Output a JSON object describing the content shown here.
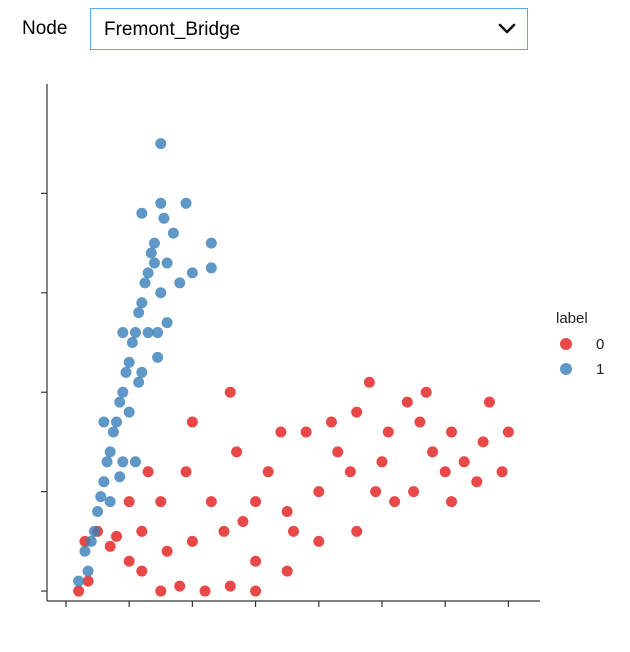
{
  "control": {
    "label": "Node",
    "selected": "Fremont_Bridge"
  },
  "icons": {
    "dropdown": "chevron-down-icon"
  },
  "colors": {
    "label_0": "#e41a1c",
    "label_1": "#377eb8",
    "dropdown_border": "#5aa9e6"
  },
  "chart_data": {
    "type": "scatter",
    "title": "",
    "xlabel": "",
    "ylabel": "",
    "xlim": [
      -0.3,
      7.5
    ],
    "ylim": [
      -0.1,
      5.1
    ],
    "xticks": [
      0,
      1,
      2,
      3,
      4,
      5,
      6,
      7
    ],
    "yticks": [
      0,
      1,
      2,
      3,
      4
    ],
    "tick_labels_visible": false,
    "grid": false,
    "legend": {
      "title": "label",
      "placement": "right",
      "entries": [
        "0",
        "1"
      ]
    },
    "series": [
      {
        "name": "0",
        "color": "#e41a1c",
        "points": [
          [
            0.2,
            0.0
          ],
          [
            0.35,
            0.1
          ],
          [
            0.3,
            0.5
          ],
          [
            0.5,
            0.6
          ],
          [
            0.8,
            0.55
          ],
          [
            1.0,
            0.3
          ],
          [
            1.2,
            0.2
          ],
          [
            1.5,
            0.0
          ],
          [
            1.8,
            0.05
          ],
          [
            2.2,
            0.0
          ],
          [
            2.6,
            0.05
          ],
          [
            3.0,
            0.0
          ],
          [
            2.0,
            0.5
          ],
          [
            2.5,
            0.6
          ],
          [
            3.0,
            0.9
          ],
          [
            3.5,
            0.8
          ],
          [
            4.0,
            1.0
          ],
          [
            4.5,
            1.2
          ],
          [
            5.0,
            1.3
          ],
          [
            5.5,
            1.0
          ],
          [
            6.0,
            1.2
          ],
          [
            6.5,
            1.1
          ],
          [
            3.8,
            1.6
          ],
          [
            4.2,
            1.7
          ],
          [
            4.6,
            1.8
          ],
          [
            5.1,
            1.6
          ],
          [
            5.6,
            1.7
          ],
          [
            6.1,
            1.6
          ],
          [
            6.6,
            1.5
          ],
          [
            7.0,
            1.6
          ],
          [
            3.4,
            1.6
          ],
          [
            2.0,
            1.7
          ],
          [
            1.9,
            1.2
          ],
          [
            2.7,
            1.4
          ],
          [
            1.5,
            0.9
          ],
          [
            1.2,
            0.6
          ],
          [
            2.6,
            2.0
          ],
          [
            4.8,
            2.1
          ],
          [
            6.7,
            1.9
          ],
          [
            5.4,
            1.9
          ],
          [
            3.0,
            0.3
          ],
          [
            3.5,
            0.2
          ],
          [
            4.0,
            0.5
          ],
          [
            4.6,
            0.6
          ],
          [
            5.2,
            0.9
          ],
          [
            5.8,
            1.4
          ],
          [
            6.3,
            1.3
          ],
          [
            2.3,
            0.9
          ],
          [
            1.6,
            0.4
          ],
          [
            1.0,
            0.9
          ],
          [
            0.7,
            0.45
          ],
          [
            3.2,
            1.2
          ],
          [
            4.3,
            1.4
          ],
          [
            5.7,
            2.0
          ],
          [
            6.1,
            0.9
          ],
          [
            2.8,
            0.7
          ],
          [
            1.3,
            1.2
          ],
          [
            3.6,
            0.6
          ],
          [
            4.9,
            1.0
          ],
          [
            6.9,
            1.2
          ]
        ]
      },
      {
        "name": "1",
        "color": "#377eb8",
        "points": [
          [
            0.2,
            0.1
          ],
          [
            0.35,
            0.2
          ],
          [
            0.4,
            0.5
          ],
          [
            0.5,
            0.8
          ],
          [
            0.6,
            1.1
          ],
          [
            0.7,
            1.4
          ],
          [
            0.8,
            1.7
          ],
          [
            0.9,
            2.0
          ],
          [
            1.0,
            2.3
          ],
          [
            1.1,
            2.6
          ],
          [
            1.2,
            2.9
          ],
          [
            1.3,
            3.2
          ],
          [
            1.4,
            3.5
          ],
          [
            1.5,
            3.9
          ],
          [
            0.45,
            0.6
          ],
          [
            0.55,
            0.95
          ],
          [
            0.65,
            1.3
          ],
          [
            0.75,
            1.6
          ],
          [
            0.85,
            1.9
          ],
          [
            0.95,
            2.2
          ],
          [
            1.05,
            2.5
          ],
          [
            1.15,
            2.8
          ],
          [
            1.25,
            3.1
          ],
          [
            1.35,
            3.4
          ],
          [
            0.7,
            0.9
          ],
          [
            0.9,
            1.3
          ],
          [
            1.0,
            1.8
          ],
          [
            1.2,
            2.2
          ],
          [
            1.3,
            2.6
          ],
          [
            1.5,
            3.0
          ],
          [
            1.6,
            3.3
          ],
          [
            1.7,
            3.6
          ],
          [
            0.3,
            0.4
          ],
          [
            1.1,
            1.3
          ],
          [
            1.45,
            2.6
          ],
          [
            0.6,
            1.7
          ],
          [
            0.9,
            2.6
          ],
          [
            2.3,
            3.5
          ],
          [
            2.3,
            3.25
          ],
          [
            1.9,
            3.9
          ],
          [
            1.55,
            3.75
          ],
          [
            1.5,
            4.5
          ],
          [
            1.2,
            3.8
          ],
          [
            1.4,
            3.3
          ],
          [
            1.8,
            3.1
          ],
          [
            2.0,
            3.2
          ],
          [
            1.6,
            2.7
          ],
          [
            1.15,
            2.1
          ],
          [
            0.85,
            1.15
          ],
          [
            1.45,
            2.35
          ]
        ]
      }
    ]
  }
}
